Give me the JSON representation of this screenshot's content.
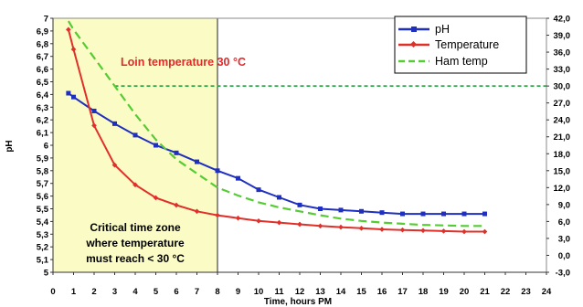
{
  "chart_data": {
    "type": "line",
    "title": "",
    "xlabel": "Time, hours PM",
    "ylabel": "pH",
    "y2label": "",
    "xlim": [
      0,
      24
    ],
    "ylim": [
      5,
      7
    ],
    "y2lim": [
      -3,
      42
    ],
    "x_ticks": [
      "0",
      "1",
      "2",
      "3",
      "4",
      "5",
      "6",
      "7",
      "8",
      "9",
      "10",
      "11",
      "12",
      "13",
      "14",
      "15",
      "16",
      "17",
      "18",
      "19",
      "20",
      "21",
      "22",
      "23",
      "24"
    ],
    "y_ticks": [
      "5",
      "5,1",
      "5,2",
      "5,3",
      "5,4",
      "5,5",
      "5,6",
      "5,7",
      "5,8",
      "5,9",
      "6",
      "6,1",
      "6,2",
      "6,3",
      "6,4",
      "6,5",
      "6,6",
      "6,7",
      "6,8",
      "6,9",
      "7"
    ],
    "y2_ticks": [
      "-3,0",
      "0,0",
      "3,0",
      "6,0",
      "9,0",
      "12,0",
      "15,0",
      "18,0",
      "21,0",
      "24,0",
      "27,0",
      "30,0",
      "33,0",
      "36,0",
      "39,0",
      "42,0"
    ],
    "series": [
      {
        "name": "pH",
        "axis": "left",
        "color": "#1f2fbf",
        "marker": "square",
        "x": [
          0.75,
          1,
          2,
          3,
          4,
          5,
          6,
          7,
          8,
          9,
          10,
          11,
          12,
          13,
          14,
          15,
          16,
          17,
          18,
          19,
          20,
          21
        ],
        "y": [
          6.41,
          6.38,
          6.27,
          6.17,
          6.08,
          6.0,
          5.94,
          5.87,
          5.8,
          5.74,
          5.65,
          5.59,
          5.53,
          5.5,
          5.49,
          5.48,
          5.47,
          5.46,
          5.46,
          5.46,
          5.46,
          5.46
        ]
      },
      {
        "name": "Temperature",
        "axis": "right",
        "color": "#e0302a",
        "marker": "diamond",
        "x": [
          0.75,
          1,
          2,
          3,
          4,
          5,
          6,
          7,
          8,
          9,
          10,
          11,
          12,
          13,
          14,
          15,
          16,
          17,
          18,
          19,
          20,
          21
        ],
        "y": [
          40.0,
          36.5,
          23.0,
          16.0,
          12.5,
          10.2,
          8.9,
          7.8,
          7.1,
          6.6,
          6.1,
          5.8,
          5.5,
          5.2,
          5.0,
          4.8,
          4.6,
          4.5,
          4.4,
          4.3,
          4.2,
          4.2
        ]
      },
      {
        "name": "Ham temp",
        "axis": "right",
        "color": "#55cc33",
        "dash": true,
        "x": [
          0.75,
          1,
          2,
          3,
          4,
          5,
          6,
          7,
          8,
          9,
          10,
          11,
          12,
          13,
          14,
          15,
          16,
          17,
          18,
          19,
          20,
          21
        ],
        "y": [
          41.5,
          40.0,
          35.0,
          30.0,
          25.0,
          20.5,
          17.0,
          14.5,
          12.0,
          10.6,
          9.4,
          8.5,
          7.8,
          7.1,
          6.5,
          6.1,
          5.8,
          5.6,
          5.4,
          5.3,
          5.2,
          5.2
        ]
      }
    ],
    "reference_line": {
      "axis": "right",
      "y": 30,
      "color": "#119933",
      "dashed": true
    },
    "highlight_zone": {
      "x_from": 0,
      "x_to": 8,
      "color": "#fbfbc6"
    },
    "annotations": [
      {
        "text": "Loin temperature 30 °C",
        "color": "#e02a2a"
      },
      {
        "lines": [
          "Critical time zone",
          "where temperature",
          "must reach < 30 °C"
        ]
      }
    ],
    "legend_position": "top-right",
    "grid": false
  }
}
